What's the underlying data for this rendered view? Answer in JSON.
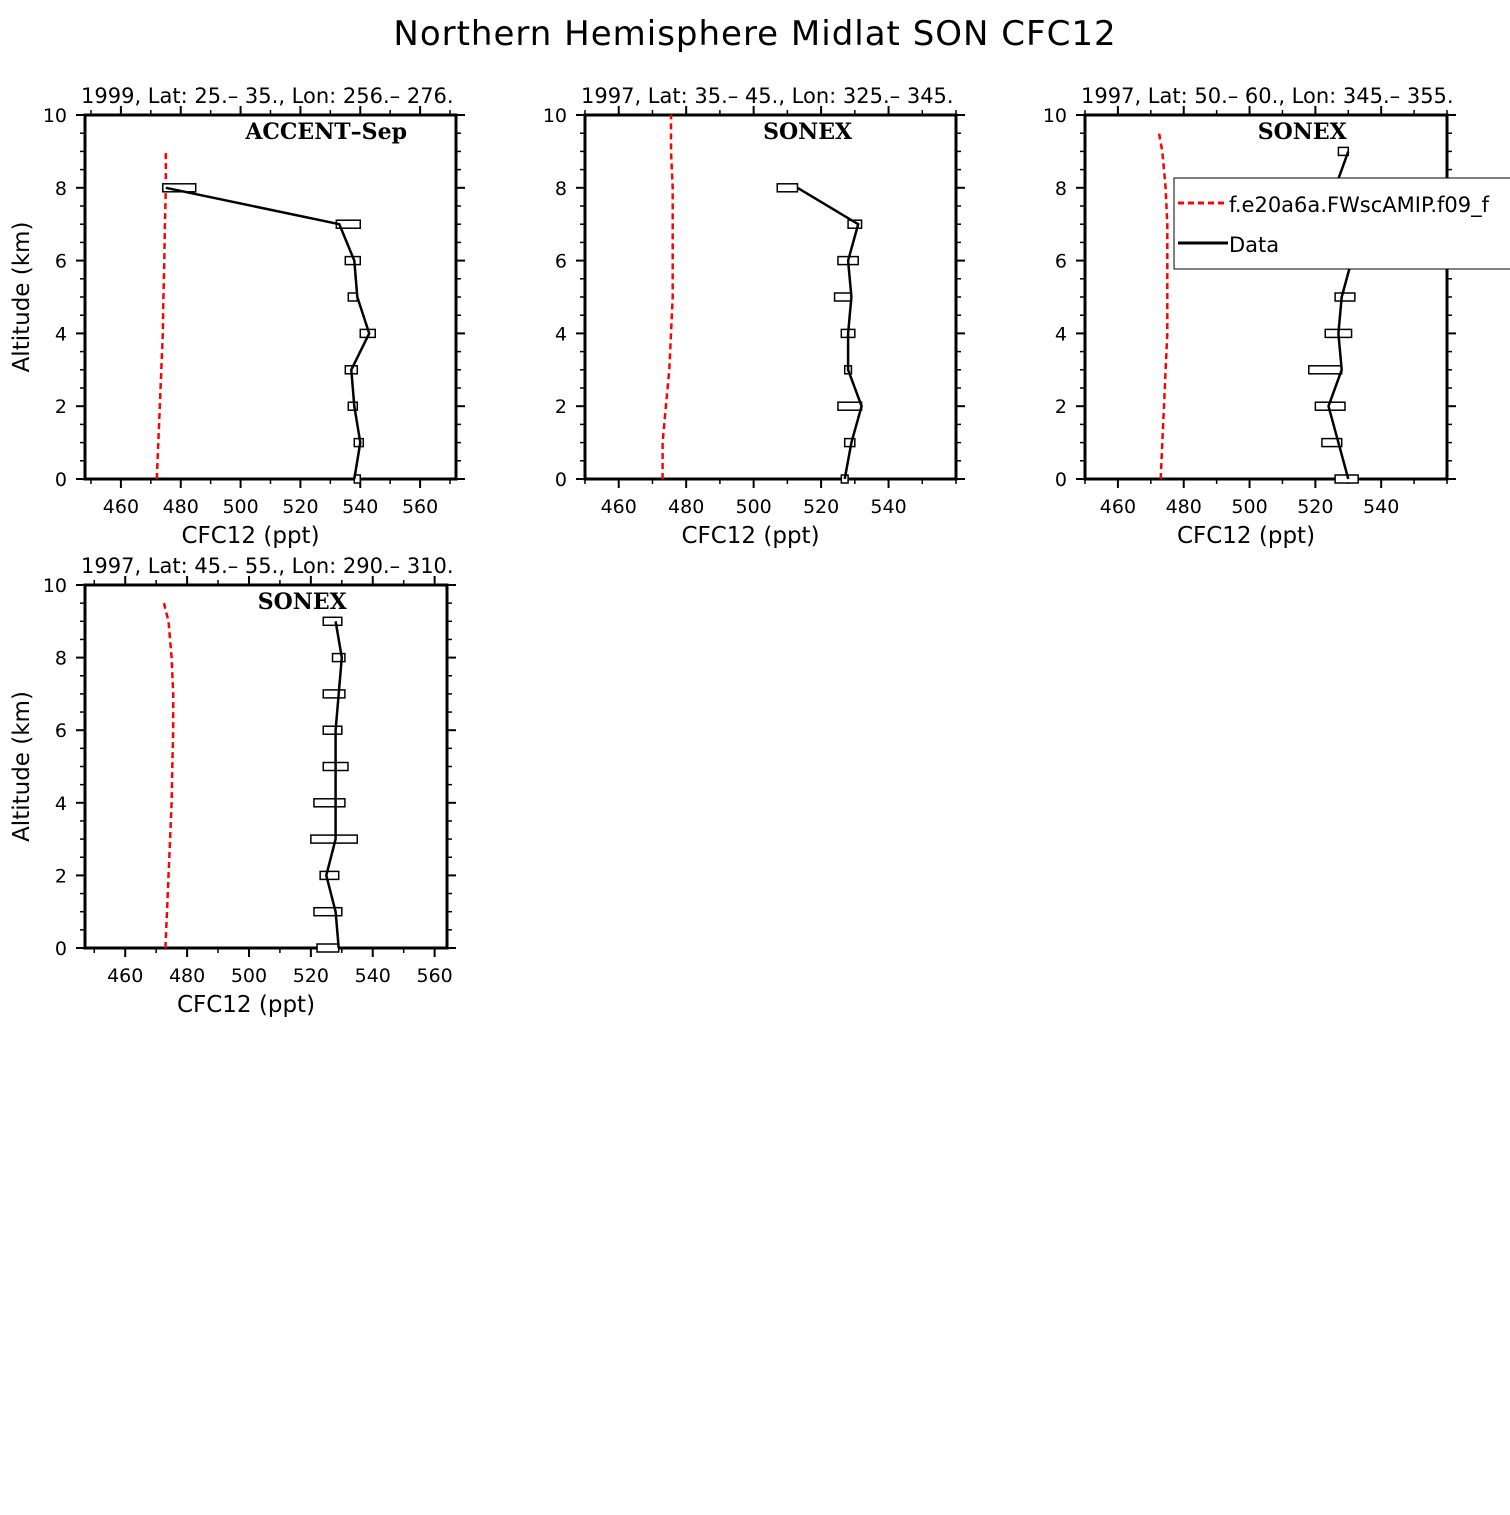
{
  "figure": {
    "title": "Northern Hemisphere Midlat SON CFC12"
  },
  "legend": {
    "items": [
      "f.e20a6a.FWscAMIP.f09_f",
      "Data"
    ]
  },
  "colors": {
    "model": "#ff0000",
    "data": "#000000"
  },
  "chart_data": [
    {
      "type": "line",
      "subtitle": "1999, Lat: 25.– 35., Lon: 256.– 276.",
      "campaign": "ACCENT–Sep",
      "xlabel": "CFC12 (ppt)",
      "ylabel": "Altitude (km)",
      "xlim": [
        448,
        572
      ],
      "ylim": [
        0,
        10
      ],
      "xticks": [
        460,
        480,
        500,
        520,
        540,
        560
      ],
      "yticks": [
        0,
        2,
        4,
        6,
        8,
        10
      ],
      "model": {
        "x": [
          472,
          472.5,
          473,
          473.5,
          474,
          474.2,
          474.5,
          474.7,
          475,
          475,
          475
        ],
        "y": [
          0,
          1,
          2,
          3,
          4,
          5,
          6,
          7,
          8,
          8.5,
          9
        ]
      },
      "data": {
        "alt": [
          0,
          1,
          2,
          3,
          4,
          5,
          6,
          7,
          8
        ],
        "mean": [
          538,
          540,
          538,
          537,
          543,
          539,
          538,
          533,
          475
        ],
        "lo": [
          538,
          538,
          536,
          535,
          540,
          536,
          535,
          532,
          474
        ],
        "hi": [
          540,
          541,
          539,
          539,
          545,
          539,
          540,
          540,
          485
        ]
      }
    },
    {
      "type": "line",
      "subtitle": "1997, Lat: 35.– 45., Lon: 325.– 345.",
      "campaign": "SONEX",
      "xlabel": "CFC12 (ppt)",
      "ylabel": "",
      "xlim": [
        450,
        560
      ],
      "ylim": [
        0,
        10
      ],
      "xticks": [
        460,
        480,
        500,
        520,
        540
      ],
      "yticks": [
        0,
        2,
        4,
        6,
        8,
        10
      ],
      "model": {
        "x": [
          473,
          473,
          474,
          475,
          475.5,
          476,
          476,
          476,
          476,
          475.5,
          475.5
        ],
        "y": [
          0,
          1,
          2,
          3,
          4,
          5,
          6,
          7,
          8,
          9,
          10
        ]
      },
      "data": {
        "alt": [
          0,
          1,
          2,
          3,
          4,
          5,
          6,
          7,
          8
        ],
        "mean": [
          527,
          529,
          532,
          528,
          528,
          529,
          528,
          531,
          513
        ],
        "lo": [
          526,
          527,
          525,
          527,
          526,
          524,
          525,
          528,
          507
        ],
        "hi": [
          528,
          530,
          532,
          529,
          530,
          529,
          531,
          532,
          513
        ]
      }
    },
    {
      "type": "line",
      "subtitle": "1997, Lat: 50.– 60., Lon: 345.– 355.",
      "campaign": "SONEX",
      "xlabel": "CFC12 (ppt)",
      "ylabel": "",
      "xlim": [
        450,
        560
      ],
      "ylim": [
        0,
        10
      ],
      "xticks": [
        460,
        480,
        500,
        520,
        540
      ],
      "yticks": [
        0,
        2,
        4,
        6,
        8,
        10
      ],
      "model": {
        "x": [
          473,
          473.5,
          474,
          474.5,
          475,
          475,
          475,
          475,
          474.5,
          473.5,
          472.5
        ],
        "y": [
          0,
          1,
          2,
          3,
          4,
          5,
          6,
          7,
          8,
          9,
          9.5
        ]
      },
      "data": {
        "alt": [
          0,
          1,
          2,
          3,
          4,
          5,
          6,
          7,
          8,
          9
        ],
        "mean": [
          530,
          527,
          524,
          528,
          527,
          528,
          531,
          528,
          526,
          530
        ],
        "lo": [
          526,
          522,
          520,
          518,
          523,
          526,
          522,
          525,
          522,
          527
        ],
        "hi": [
          533,
          528,
          529,
          528,
          531,
          532,
          532,
          529,
          530,
          530
        ]
      }
    },
    {
      "type": "line",
      "subtitle": "1997, Lat: 45.– 55., Lon: 290.– 310.",
      "campaign": "SONEX",
      "xlabel": "CFC12 (ppt)",
      "ylabel": "Altitude (km)",
      "xlim": [
        447,
        564
      ],
      "ylim": [
        0,
        10
      ],
      "xticks": [
        460,
        480,
        500,
        520,
        540,
        560
      ],
      "yticks": [
        0,
        2,
        4,
        6,
        8,
        10
      ],
      "model": {
        "x": [
          473,
          473.5,
          474,
          474.5,
          475,
          475.2,
          475.5,
          475.5,
          475,
          474,
          472.5
        ],
        "y": [
          0,
          1,
          2,
          3,
          4,
          5,
          6,
          7,
          8,
          9,
          9.5
        ]
      },
      "data": {
        "alt": [
          0,
          1,
          2,
          3,
          4,
          5,
          6,
          7,
          8,
          9
        ],
        "mean": [
          529,
          528,
          525,
          528,
          528,
          528,
          528,
          529,
          530,
          528
        ],
        "lo": [
          522,
          521,
          523,
          520,
          521,
          524,
          524,
          524,
          527,
          524
        ],
        "hi": [
          529,
          530,
          529,
          535,
          531,
          532,
          530,
          531,
          531,
          530
        ]
      }
    }
  ]
}
